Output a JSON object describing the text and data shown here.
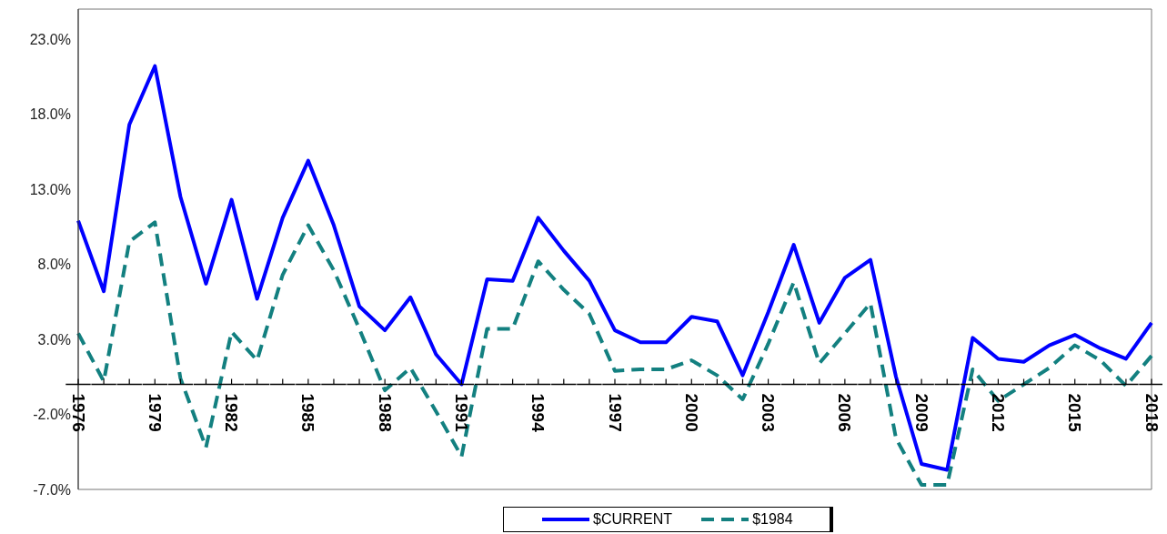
{
  "chart_data": {
    "type": "line",
    "categories": [
      "1976",
      null,
      null,
      "1979",
      null,
      null,
      "1982",
      null,
      null,
      "1985",
      null,
      null,
      "1988",
      null,
      null,
      "1991",
      null,
      null,
      "1994",
      null,
      null,
      "1997",
      null,
      null,
      "2000",
      null,
      null,
      "2003",
      null,
      null,
      "2006",
      null,
      null,
      "2009",
      null,
      null,
      "2012",
      null,
      null,
      "2015",
      null,
      null,
      "2018"
    ],
    "series": [
      {
        "name": "$CURRENT",
        "color": "#0000ff",
        "line_style": "solid",
        "values": [
          10.9,
          6.2,
          17.3,
          21.2,
          12.5,
          6.7,
          12.3,
          5.7,
          11.1,
          14.9,
          10.6,
          5.2,
          3.6,
          5.8,
          2.0,
          0.0,
          7.0,
          6.9,
          11.1,
          8.9,
          6.9,
          3.6,
          2.8,
          2.8,
          4.5,
          4.2,
          0.6,
          4.8,
          9.3,
          4.1,
          7.1,
          8.3,
          0.5,
          -5.3,
          -5.7,
          3.1,
          1.7,
          1.5,
          2.6,
          3.3,
          2.4,
          1.7,
          4.1
        ]
      },
      {
        "name": "$1984",
        "color": "#138080",
        "line_style": "dashed",
        "values": [
          3.4,
          0.2,
          9.5,
          10.8,
          0.4,
          -4.2,
          3.5,
          1.6,
          7.3,
          10.6,
          7.6,
          3.7,
          -0.4,
          1.1,
          -1.8,
          -4.8,
          3.7,
          3.7,
          8.2,
          6.3,
          4.7,
          0.9,
          1.0,
          1.0,
          1.6,
          0.6,
          -1.0,
          2.7,
          6.8,
          1.4,
          3.4,
          5.4,
          -3.6,
          -6.7,
          -6.7,
          1.0,
          -1.1,
          0.0,
          1.1,
          2.6,
          1.6,
          -0.1,
          1.9
        ]
      }
    ],
    "ylim": [
      -7,
      25
    ],
    "yticks": [
      {
        "value": -7,
        "label": "-7.0%"
      },
      {
        "value": -2,
        "label": "-2.0%"
      },
      {
        "value": 3,
        "label": "3.0%"
      },
      {
        "value": 8,
        "label": "8.0%"
      },
      {
        "value": 13,
        "label": "13.0%"
      },
      {
        "value": 18,
        "label": "18.0%"
      },
      {
        "value": 23,
        "label": "23.0%"
      }
    ],
    "grid": false,
    "legend": "bottom",
    "marker": "none"
  }
}
